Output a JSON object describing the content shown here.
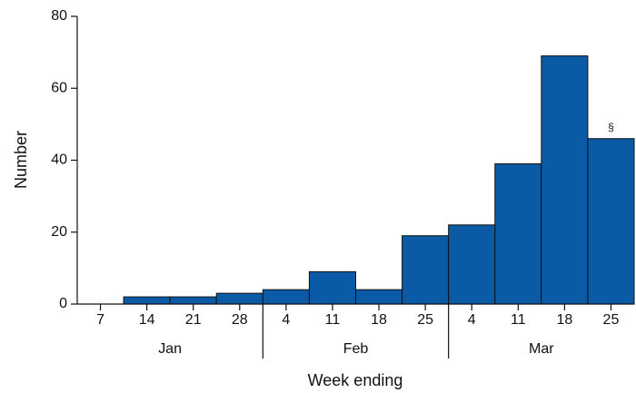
{
  "chart_data": {
    "type": "bar",
    "category_groups": [
      {
        "name": "Jan",
        "categories": [
          "7",
          "14",
          "21",
          "28"
        ]
      },
      {
        "name": "Feb",
        "categories": [
          "4",
          "11",
          "18",
          "25"
        ]
      },
      {
        "name": "Mar",
        "categories": [
          "4",
          "11",
          "18",
          "25"
        ]
      }
    ],
    "values": [
      0,
      2,
      2,
      3,
      4,
      9,
      4,
      19,
      22,
      39,
      69,
      46
    ],
    "color": "#0b5aa6",
    "ylim": [
      0,
      80
    ],
    "yticks": [
      0,
      20,
      40,
      60,
      80
    ],
    "ylabel": "Number",
    "xlabel": "Week ending",
    "annotations": [
      {
        "text": "§",
        "at": 11
      }
    ]
  }
}
